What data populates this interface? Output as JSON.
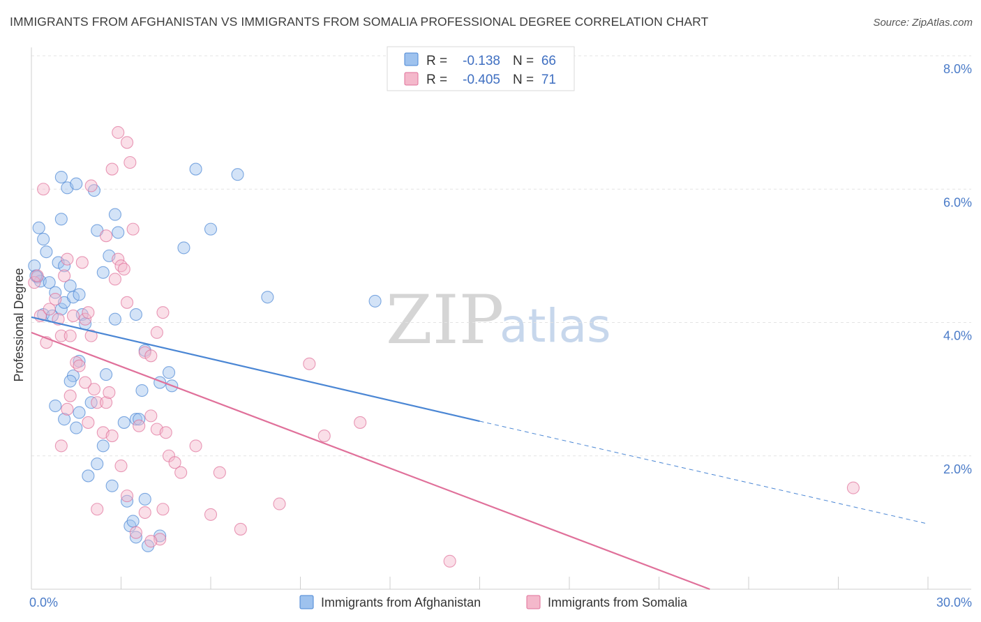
{
  "title": "IMMIGRANTS FROM AFGHANISTAN VS IMMIGRANTS FROM SOMALIA PROFESSIONAL DEGREE CORRELATION CHART",
  "source": "Source: ZipAtlas.com",
  "watermark": {
    "zip": "ZIP",
    "atlas": "atlas"
  },
  "stats": [
    {
      "r_label": "R =",
      "r_value": "-0.138",
      "n_label": "N =",
      "n_value": "66",
      "color": "#9ec2ee"
    },
    {
      "r_label": "R =",
      "r_value": "-0.405",
      "n_label": "N =",
      "n_value": "71",
      "color": "#f4b8cb"
    }
  ],
  "chart_data": {
    "type": "scatter",
    "title": "IMMIGRANTS FROM AFGHANISTAN VS IMMIGRANTS FROM SOMALIA PROFESSIONAL DEGREE CORRELATION CHART",
    "xlabel": "",
    "ylabel": "Professional Degree",
    "xlim": [
      0,
      30
    ],
    "ylim": [
      0,
      8
    ],
    "x_tick_labels": [
      "0.0%",
      "30.0%"
    ],
    "y_ticks": [
      2,
      4,
      6,
      8
    ],
    "y_tick_labels": [
      "2.0%",
      "4.0%",
      "6.0%",
      "8.0%"
    ],
    "grid": true,
    "legend_position": "bottom-center",
    "series": [
      {
        "name": "Immigrants from Afghanistan",
        "color": "#4a86d4",
        "fill": "#9ec2ee",
        "trend": {
          "x0": 0,
          "y0": 4.08,
          "x1": 15,
          "y1": 2.52,
          "dashed_to_x": 30,
          "dashed_to_y": 0.98
        },
        "points": [
          [
            0.1,
            4.85
          ],
          [
            0.2,
            4.68
          ],
          [
            0.3,
            4.62
          ],
          [
            0.25,
            5.42
          ],
          [
            0.4,
            5.25
          ],
          [
            0.5,
            5.06
          ],
          [
            0.4,
            4.12
          ],
          [
            0.6,
            4.6
          ],
          [
            0.7,
            4.1
          ],
          [
            0.8,
            4.45
          ],
          [
            0.9,
            4.9
          ],
          [
            1.0,
            5.55
          ],
          [
            1.0,
            6.18
          ],
          [
            1.2,
            6.02
          ],
          [
            1.1,
            4.85
          ],
          [
            1.0,
            4.2
          ],
          [
            1.1,
            4.3
          ],
          [
            1.3,
            4.55
          ],
          [
            1.4,
            4.38
          ],
          [
            1.5,
            6.08
          ],
          [
            1.6,
            4.42
          ],
          [
            1.7,
            4.12
          ],
          [
            1.8,
            3.98
          ],
          [
            2.1,
            5.98
          ],
          [
            2.2,
            5.38
          ],
          [
            2.4,
            4.75
          ],
          [
            2.6,
            5.0
          ],
          [
            2.8,
            5.62
          ],
          [
            2.9,
            5.35
          ],
          [
            2.8,
            4.05
          ],
          [
            3.5,
            4.12
          ],
          [
            3.8,
            3.58
          ],
          [
            3.7,
            2.98
          ],
          [
            3.5,
            2.55
          ],
          [
            3.1,
            2.5
          ],
          [
            1.6,
            3.42
          ],
          [
            1.4,
            3.2
          ],
          [
            1.3,
            3.12
          ],
          [
            1.5,
            2.42
          ],
          [
            1.6,
            2.65
          ],
          [
            2.5,
            3.22
          ],
          [
            4.3,
            3.1
          ],
          [
            4.6,
            3.25
          ],
          [
            4.7,
            3.05
          ],
          [
            5.1,
            5.12
          ],
          [
            5.5,
            6.3
          ],
          [
            6.0,
            5.4
          ],
          [
            6.9,
            6.22
          ],
          [
            7.9,
            4.38
          ],
          [
            11.5,
            4.32
          ],
          [
            2.4,
            2.15
          ],
          [
            2.2,
            1.88
          ],
          [
            1.9,
            1.7
          ],
          [
            2.7,
            1.55
          ],
          [
            3.2,
            1.32
          ],
          [
            3.8,
            1.35
          ],
          [
            3.3,
            0.95
          ],
          [
            3.4,
            1.02
          ],
          [
            3.5,
            0.78
          ],
          [
            3.9,
            0.65
          ],
          [
            4.3,
            0.8
          ],
          [
            0.8,
            2.75
          ],
          [
            1.1,
            2.55
          ],
          [
            2.0,
            2.8
          ],
          [
            3.6,
            2.55
          ],
          [
            0.15,
            4.7
          ]
        ]
      },
      {
        "name": "Immigrants from Somalia",
        "color": "#e0709a",
        "fill": "#f4b8cb",
        "trend": {
          "x0": 0,
          "y0": 3.85,
          "x1": 22.7,
          "y1": 0
        },
        "points": [
          [
            0.1,
            4.6
          ],
          [
            0.2,
            4.7
          ],
          [
            0.3,
            4.1
          ],
          [
            0.4,
            6.0
          ],
          [
            0.5,
            3.7
          ],
          [
            0.6,
            4.2
          ],
          [
            0.8,
            4.35
          ],
          [
            0.9,
            4.05
          ],
          [
            1.0,
            3.8
          ],
          [
            1.1,
            4.7
          ],
          [
            1.2,
            4.95
          ],
          [
            1.3,
            3.8
          ],
          [
            1.4,
            4.1
          ],
          [
            1.5,
            3.4
          ],
          [
            1.6,
            3.35
          ],
          [
            1.7,
            4.9
          ],
          [
            1.8,
            4.05
          ],
          [
            1.9,
            4.15
          ],
          [
            2.0,
            3.8
          ],
          [
            2.1,
            3.0
          ],
          [
            2.2,
            2.8
          ],
          [
            2.4,
            2.35
          ],
          [
            2.5,
            2.8
          ],
          [
            2.6,
            2.95
          ],
          [
            2.7,
            2.3
          ],
          [
            2.8,
            4.65
          ],
          [
            2.9,
            4.95
          ],
          [
            3.0,
            4.85
          ],
          [
            3.1,
            4.8
          ],
          [
            3.2,
            4.3
          ],
          [
            2.5,
            5.3
          ],
          [
            2.7,
            6.3
          ],
          [
            2.9,
            6.85
          ],
          [
            3.2,
            6.7
          ],
          [
            3.3,
            6.4
          ],
          [
            3.4,
            5.4
          ],
          [
            2.0,
            6.05
          ],
          [
            1.8,
            3.1
          ],
          [
            1.9,
            2.5
          ],
          [
            1.2,
            2.7
          ],
          [
            1.0,
            2.15
          ],
          [
            1.3,
            2.9
          ],
          [
            3.6,
            2.45
          ],
          [
            3.8,
            3.55
          ],
          [
            4.0,
            3.5
          ],
          [
            4.2,
            3.85
          ],
          [
            4.4,
            4.15
          ],
          [
            4.0,
            2.6
          ],
          [
            4.2,
            2.4
          ],
          [
            4.5,
            2.35
          ],
          [
            4.6,
            2.0
          ],
          [
            4.8,
            1.9
          ],
          [
            5.0,
            1.75
          ],
          [
            5.5,
            2.15
          ],
          [
            6.3,
            1.75
          ],
          [
            6.0,
            1.12
          ],
          [
            7.0,
            0.9
          ],
          [
            8.3,
            1.28
          ],
          [
            9.3,
            3.38
          ],
          [
            9.8,
            2.3
          ],
          [
            11.0,
            2.5
          ],
          [
            14.0,
            0.42
          ],
          [
            27.5,
            1.52
          ],
          [
            2.2,
            1.2
          ],
          [
            3.0,
            1.85
          ],
          [
            3.2,
            1.4
          ],
          [
            3.8,
            1.15
          ],
          [
            4.3,
            0.75
          ],
          [
            3.5,
            0.85
          ],
          [
            4.4,
            1.2
          ],
          [
            4.0,
            0.72
          ]
        ]
      }
    ]
  }
}
